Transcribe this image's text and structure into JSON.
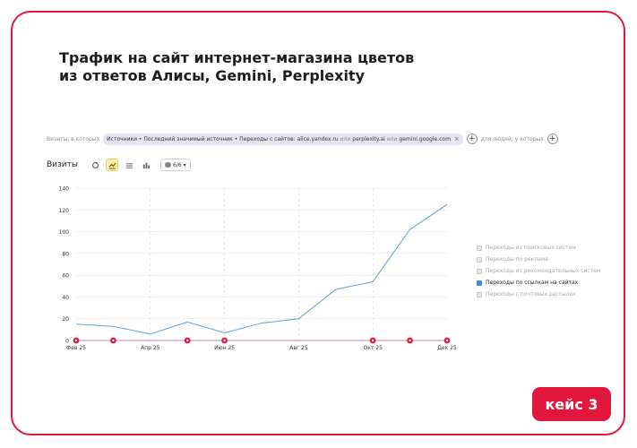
{
  "title": {
    "line1": "Трафик на сайт интернет-магазина цветов",
    "line2": "из ответов Алисы, Gemini, Perplexity"
  },
  "filter": {
    "prefix": "Визиты, в которых",
    "chip_main": "Источники • Последний значимый источник • Переходы с сайтов: alice.yandex.ru",
    "or1": "или",
    "site2": "perplexity.ai",
    "or2": "или",
    "site3": "gemini.google.com",
    "close": "×",
    "plus": "+",
    "suffix": "для людей, у которых",
    "plus2": "+"
  },
  "toolbar": {
    "metric": "Визиты",
    "segments": "6/6"
  },
  "legend": [
    {
      "label": "Переходы из поисковых систем",
      "checked": false
    },
    {
      "label": "Переходы по рекламе",
      "checked": false
    },
    {
      "label": "Переходы из рекомендательных систем",
      "checked": false
    },
    {
      "label": "Переходы по ссылкам на сайтах",
      "checked": true
    },
    {
      "label": "Переходы с почтовых рассылок",
      "checked": false
    }
  ],
  "badge": "кейс 3",
  "chart_data": {
    "type": "line",
    "ylim": [
      0,
      140
    ],
    "yticks": [
      0,
      20,
      40,
      60,
      80,
      100,
      120,
      140
    ],
    "xticks": [
      "Фев 25",
      "Апр 25",
      "Июн 25",
      "Авг 25",
      "Окт 25",
      "Дек 25"
    ],
    "series": [
      {
        "name": "Переходы по ссылкам на сайтах",
        "color": "#5b9fd4",
        "x": [
          0,
          1,
          2,
          3,
          4,
          5,
          6,
          7,
          8,
          9,
          10
        ],
        "values": [
          15,
          13,
          6,
          17,
          7,
          16,
          20,
          47,
          54,
          102,
          125
        ]
      }
    ],
    "grid": true,
    "legend_position": "right",
    "annotation_markers_x": [
      0,
      1,
      3,
      4,
      8,
      9,
      10
    ]
  }
}
